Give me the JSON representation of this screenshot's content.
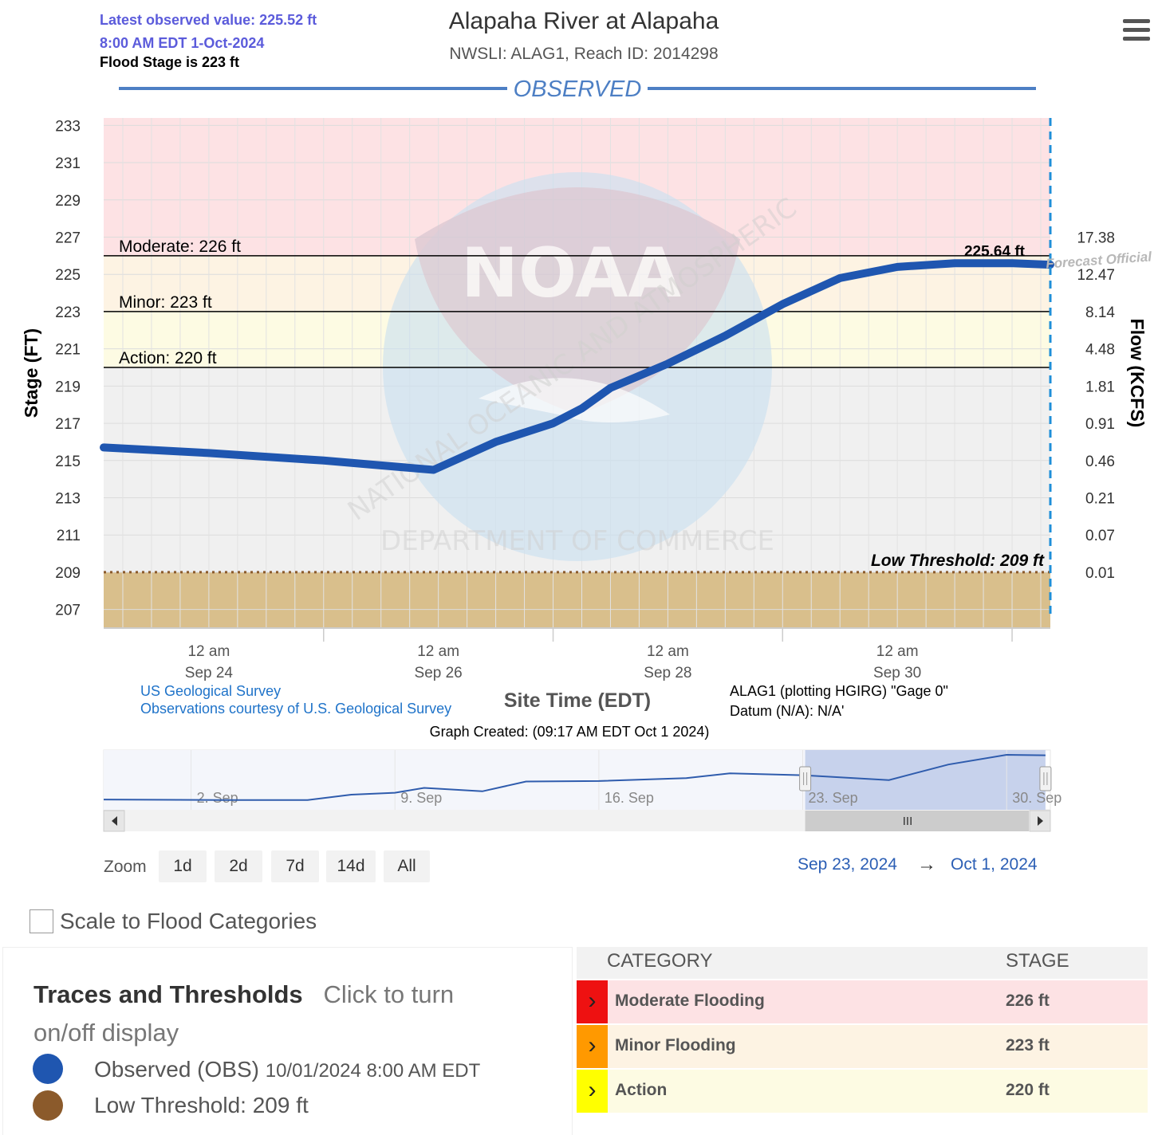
{
  "header": {
    "latest_value": "Latest observed value: 225.52 ft",
    "latest_time": "8:00 AM EDT 1-Oct-2024",
    "flood_stage": "Flood Stage is 223 ft",
    "title": "Alapaha River at Alapaha",
    "subtitle": "NWSLI: ALAG1, Reach ID: 2014298"
  },
  "chart_data": {
    "type": "line",
    "section_label": "OBSERVED",
    "ylabel": "Stage (FT)",
    "y2label": "Flow (KCFS)",
    "xlabel": "Site Time (EDT)",
    "ylim": [
      206,
      233.4
    ],
    "y_ticks": [
      207,
      209,
      211,
      213,
      215,
      217,
      219,
      221,
      223,
      225,
      227,
      229,
      231,
      233
    ],
    "y2_ticks": [
      {
        "stage": 209,
        "label": "0.01"
      },
      {
        "stage": 211,
        "label": "0.07"
      },
      {
        "stage": 213,
        "label": "0.21"
      },
      {
        "stage": 215,
        "label": "0.46"
      },
      {
        "stage": 217,
        "label": "0.91"
      },
      {
        "stage": 219,
        "label": "1.81"
      },
      {
        "stage": 221,
        "label": "4.48"
      },
      {
        "stage": 223,
        "label": "8.14"
      },
      {
        "stage": 225,
        "label": "12.47"
      },
      {
        "stage": 227,
        "label": "17.38"
      }
    ],
    "xlim": [
      "2024-09-23 02:00",
      "2024-10-01 08:00"
    ],
    "x_ticks": [
      {
        "t": "2024-09-24 00:00",
        "time": "12 am",
        "date": "Sep 24"
      },
      {
        "t": "2024-09-26 00:00",
        "time": "12 am",
        "date": "Sep 26"
      },
      {
        "t": "2024-09-28 00:00",
        "time": "12 am",
        "date": "Sep 28"
      },
      {
        "t": "2024-09-30 00:00",
        "time": "12 am",
        "date": "Sep 30"
      }
    ],
    "minor_x_ticks": [
      "2024-09-25 00:00",
      "2024-09-27 00:00",
      "2024-09-29 00:00",
      "2024-10-01 00:00"
    ],
    "bands": [
      {
        "from": 226,
        "to": 233.4,
        "color": "#fde2e4"
      },
      {
        "from": 223,
        "to": 226,
        "color": "#fdf3e3"
      },
      {
        "from": 220,
        "to": 223,
        "color": "#fdfbe3"
      },
      {
        "from": 209,
        "to": 220,
        "color": "#f0f0f0"
      },
      {
        "from": 206,
        "to": 209,
        "color": "#d9bf8c"
      }
    ],
    "thresholds": [
      {
        "value": 226,
        "label": "Moderate: 226 ft"
      },
      {
        "value": 223,
        "label": "Minor: 223 ft"
      },
      {
        "value": 220,
        "label": "Action: 220 ft"
      }
    ],
    "low_threshold": {
      "value": 209,
      "label": "Low Threshold: 209 ft",
      "color": "#8b5a2b"
    },
    "max_label": "225.64 ft",
    "forecast_watermark": "Forecast Official",
    "series": [
      {
        "name": "Observed (OBS)",
        "color": "#1f56b0",
        "points": [
          [
            "2024-09-23 02:00",
            215.7
          ],
          [
            "2024-09-24 00:00",
            215.4
          ],
          [
            "2024-09-25 00:00",
            215.0
          ],
          [
            "2024-09-25 23:00",
            214.5
          ],
          [
            "2024-09-26 12:00",
            216.0
          ],
          [
            "2024-09-27 00:00",
            217.0
          ],
          [
            "2024-09-27 06:00",
            217.8
          ],
          [
            "2024-09-27 12:00",
            218.9
          ],
          [
            "2024-09-28 00:00",
            220.2
          ],
          [
            "2024-09-28 12:00",
            221.7
          ],
          [
            "2024-09-29 00:00",
            223.4
          ],
          [
            "2024-09-29 12:00",
            224.8
          ],
          [
            "2024-09-30 00:00",
            225.4
          ],
          [
            "2024-09-30 12:00",
            225.6
          ],
          [
            "2024-10-01 00:00",
            225.6
          ],
          [
            "2024-10-01 08:00",
            225.52
          ]
        ]
      }
    ]
  },
  "navigator": {
    "labels": [
      "2. Sep",
      "9. Sep",
      "16. Sep",
      "23. Sep",
      "30. Sep"
    ],
    "overview_points": [
      [
        "2024-08-30 00:00",
        0.08
      ],
      [
        "2024-09-03 00:00",
        0.07
      ],
      [
        "2024-09-06 00:00",
        0.07
      ],
      [
        "2024-09-07 12:00",
        0.18
      ],
      [
        "2024-09-09 00:00",
        0.22
      ],
      [
        "2024-09-10 00:00",
        0.32
      ],
      [
        "2024-09-12 00:00",
        0.25
      ],
      [
        "2024-09-13 12:00",
        0.45
      ],
      [
        "2024-09-16 00:00",
        0.46
      ],
      [
        "2024-09-19 00:00",
        0.52
      ],
      [
        "2024-09-20 12:00",
        0.62
      ],
      [
        "2024-09-23 00:00",
        0.58
      ],
      [
        "2024-09-25 23:00",
        0.48
      ],
      [
        "2024-09-28 00:00",
        0.8
      ],
      [
        "2024-09-30 00:00",
        1.0
      ],
      [
        "2024-10-01 08:00",
        0.99
      ]
    ]
  },
  "credits": {
    "agency": "US Geological Survey",
    "courtesy": "Observations courtesy of U.S. Geological Survey",
    "datum_line1": "ALAG1 (plotting HGIRG) \"Gage 0\"",
    "datum_line2": "Datum (N/A): N/A'",
    "created": "Graph Created: (09:17 AM EDT Oct 1 2024)"
  },
  "controls": {
    "zoom_label": "Zoom",
    "zoom_buttons": [
      "1d",
      "2d",
      "7d",
      "14d",
      "All"
    ],
    "range_from": "Sep 23, 2024",
    "range_arrow": "→",
    "range_to": "Oct 1, 2024",
    "scale_label": "Scale to Flood Categories"
  },
  "legend": {
    "heading": "Traces and Thresholds",
    "hint": "Click to turn on/off display",
    "items": [
      {
        "label": "Observed (OBS)",
        "detail": "10/01/2024 8:00 AM EDT",
        "color": "#1f56b0"
      },
      {
        "label": "Low Threshold: 209 ft",
        "detail": "",
        "color": "#8b5a2b"
      }
    ]
  },
  "categories": {
    "col_category": "CATEGORY",
    "col_stage": "STAGE",
    "rows": [
      {
        "name": "Moderate Flooding",
        "stage": "226 ft",
        "color": "#ee1111",
        "bg": "#fde2e4"
      },
      {
        "name": "Minor Flooding",
        "stage": "223 ft",
        "color": "#ff9900",
        "bg": "#fdf3e3"
      },
      {
        "name": "Action",
        "stage": "220 ft",
        "color": "#ffff00",
        "bg": "#fdfbe3"
      }
    ]
  }
}
